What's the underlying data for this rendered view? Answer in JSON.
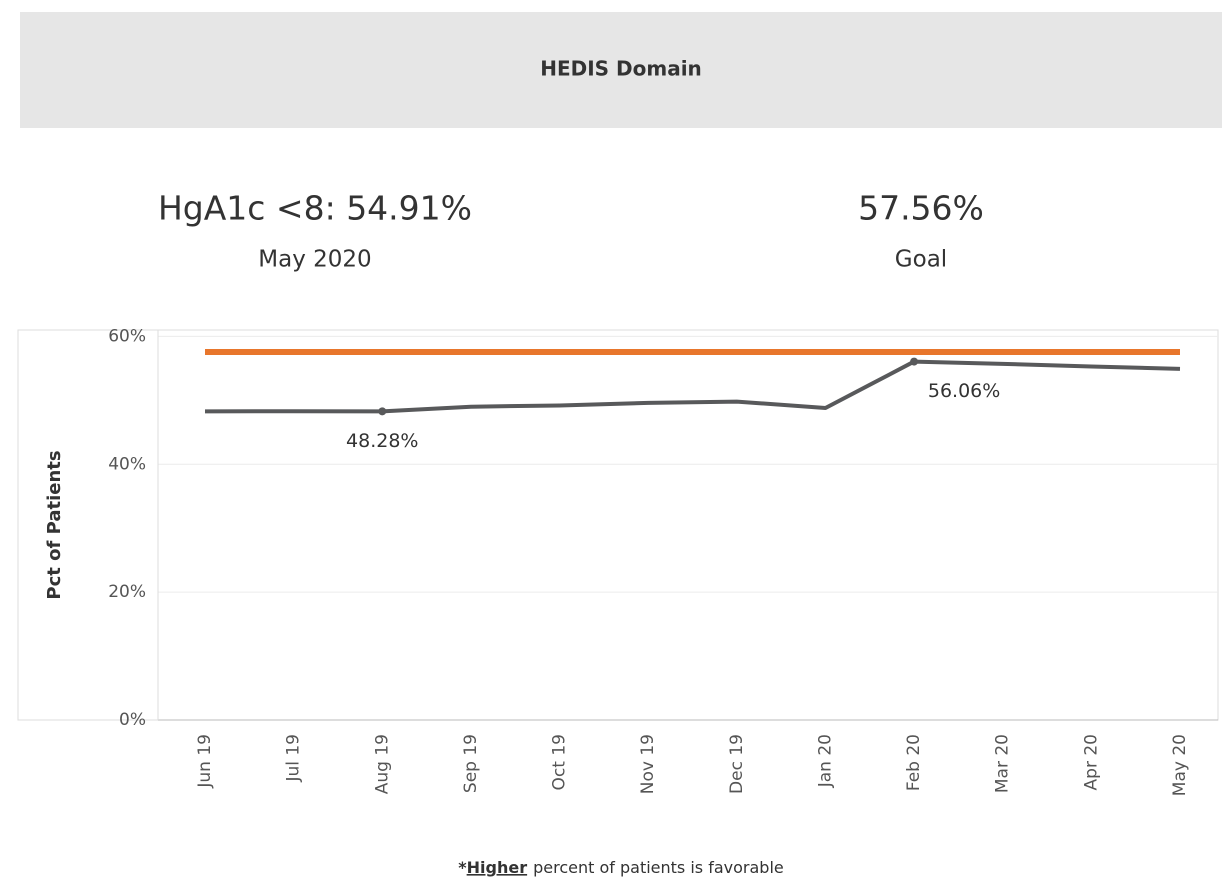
{
  "header": {
    "title": "HEDIS Domain"
  },
  "kpi": {
    "measure": "HgA1c <8: 54.91%",
    "period": "May 2020",
    "goal_value": "57.56%",
    "goal_label": "Goal"
  },
  "chart_data": {
    "type": "line",
    "y_label": "Pct of Patients",
    "categories": [
      "Jun 19",
      "Jul 19",
      "Aug 19",
      "Sep 19",
      "Oct 19",
      "Nov 19",
      "Dec 19",
      "Jan 20",
      "Feb 20",
      "Mar 20",
      "Apr 20",
      "May 20"
    ],
    "series": [
      {
        "color": "#58595b",
        "values": [
          48.28,
          48.3,
          48.28,
          49.0,
          49.2,
          49.6,
          49.8,
          48.8,
          56.06,
          55.7,
          55.3,
          54.91
        ],
        "value_labels": [
          null,
          null,
          "48.28%",
          null,
          null,
          null,
          null,
          null,
          "56.06%",
          null,
          null,
          null
        ]
      },
      {
        "color": "#e8762c",
        "values": [
          57.56,
          57.56,
          57.56,
          57.56,
          57.56,
          57.56,
          57.56,
          57.56,
          57.56,
          57.56,
          57.56,
          57.56
        ]
      }
    ],
    "ylim": [
      0,
      61
    ],
    "yticks": [
      {
        "value": 0,
        "label": "0%"
      },
      {
        "value": 20,
        "label": "20%"
      },
      {
        "value": 40,
        "label": "40%"
      },
      {
        "value": 60,
        "label": "60%"
      }
    ],
    "grid": true
  },
  "footnote": {
    "prefix": "*",
    "emphasis": "Higher",
    "rest": "percent of patients is favorable"
  }
}
